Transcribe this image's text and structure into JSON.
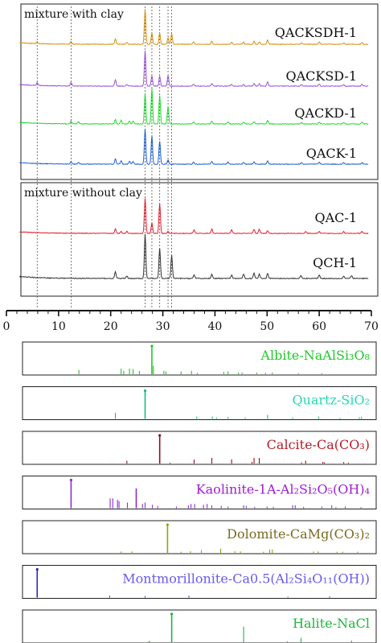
{
  "chart_data": [
    {
      "type": "line",
      "panel": "mixture-with-clay",
      "title": "mixture with clay",
      "xlim": [
        0,
        70
      ],
      "x_ticks": [
        0,
        10,
        20,
        30,
        40,
        50,
        60,
        70
      ],
      "series": [
        {
          "name": "QACKSDH-1",
          "color": "#d4900e",
          "baseline": 0.02,
          "peaks": [
            [
              5.9,
              0.05
            ],
            [
              12.4,
              0.08
            ],
            [
              20.9,
              0.15
            ],
            [
              23.1,
              0.05
            ],
            [
              26.6,
              1.0
            ],
            [
              27.9,
              0.32
            ],
            [
              29.4,
              0.32
            ],
            [
              31.0,
              0.18
            ],
            [
              31.7,
              0.3
            ],
            [
              35.9,
              0.06
            ],
            [
              39.4,
              0.08
            ],
            [
              43.2,
              0.06
            ],
            [
              45.5,
              0.06
            ],
            [
              47.5,
              0.08
            ],
            [
              48.5,
              0.07
            ],
            [
              50.1,
              0.12
            ],
            [
              56.6,
              0.04
            ],
            [
              60.0,
              0.06
            ],
            [
              64.7,
              0.04
            ],
            [
              68.2,
              0.05
            ]
          ]
        },
        {
          "name": "QACKSD-1",
          "color": "#9a52d8",
          "baseline": 0.02,
          "peaks": [
            [
              5.9,
              0.08
            ],
            [
              12.4,
              0.1
            ],
            [
              20.9,
              0.18
            ],
            [
              23.1,
              0.05
            ],
            [
              26.6,
              1.0
            ],
            [
              27.9,
              0.3
            ],
            [
              29.4,
              0.28
            ],
            [
              31.0,
              0.3
            ],
            [
              35.9,
              0.05
            ],
            [
              39.4,
              0.07
            ],
            [
              43.2,
              0.05
            ],
            [
              45.5,
              0.05
            ],
            [
              47.5,
              0.07
            ],
            [
              48.5,
              0.06
            ],
            [
              50.1,
              0.12
            ],
            [
              56.6,
              0.04
            ],
            [
              60.0,
              0.06
            ],
            [
              64.7,
              0.04
            ],
            [
              68.2,
              0.05
            ]
          ]
        },
        {
          "name": "QACKD-1",
          "color": "#1fd82c",
          "baseline": 0.02,
          "peaks": [
            [
              12.4,
              0.08
            ],
            [
              13.8,
              0.06
            ],
            [
              20.9,
              0.12
            ],
            [
              22.0,
              0.1
            ],
            [
              23.6,
              0.08
            ],
            [
              24.3,
              0.08
            ],
            [
              26.6,
              0.85
            ],
            [
              27.9,
              1.0
            ],
            [
              29.4,
              0.8
            ],
            [
              31.0,
              0.5
            ],
            [
              35.9,
              0.06
            ],
            [
              39.4,
              0.07
            ],
            [
              42.5,
              0.06
            ],
            [
              45.5,
              0.05
            ],
            [
              47.5,
              0.06
            ],
            [
              50.1,
              0.1
            ],
            [
              56.6,
              0.04
            ],
            [
              60.0,
              0.05
            ],
            [
              64.7,
              0.04
            ],
            [
              68.2,
              0.05
            ]
          ]
        },
        {
          "name": "QACK-1",
          "color": "#1e5fd0",
          "baseline": 0.02,
          "peaks": [
            [
              12.4,
              0.07
            ],
            [
              13.8,
              0.05
            ],
            [
              20.9,
              0.15
            ],
            [
              22.0,
              0.1
            ],
            [
              23.6,
              0.08
            ],
            [
              24.3,
              0.08
            ],
            [
              26.6,
              1.0
            ],
            [
              27.9,
              0.8
            ],
            [
              29.4,
              0.65
            ],
            [
              31.0,
              0.12
            ],
            [
              35.9,
              0.06
            ],
            [
              39.4,
              0.08
            ],
            [
              42.5,
              0.06
            ],
            [
              45.5,
              0.05
            ],
            [
              47.5,
              0.07
            ],
            [
              50.1,
              0.1
            ],
            [
              56.6,
              0.04
            ],
            [
              60.0,
              0.05
            ],
            [
              64.7,
              0.04
            ],
            [
              68.2,
              0.05
            ]
          ]
        }
      ]
    },
    {
      "type": "line",
      "panel": "mixture-without-clay",
      "title": "mixture without clay",
      "xlim": [
        0,
        70
      ],
      "series": [
        {
          "name": "QAC-1",
          "color": "#e0202e",
          "baseline": 0.02,
          "peaks": [
            [
              20.9,
              0.12
            ],
            [
              22.0,
              0.06
            ],
            [
              23.1,
              0.06
            ],
            [
              26.6,
              1.0
            ],
            [
              27.9,
              0.3
            ],
            [
              29.4,
              0.85
            ],
            [
              31.0,
              0.05
            ],
            [
              36.0,
              0.1
            ],
            [
              39.4,
              0.12
            ],
            [
              43.2,
              0.1
            ],
            [
              47.5,
              0.12
            ],
            [
              48.5,
              0.12
            ],
            [
              50.1,
              0.08
            ],
            [
              57.4,
              0.05
            ],
            [
              60.0,
              0.05
            ],
            [
              64.7,
              0.05
            ],
            [
              68.2,
              0.05
            ]
          ]
        },
        {
          "name": "QCH-1",
          "color": "#333333",
          "baseline": 0.02,
          "peaks": [
            [
              20.9,
              0.15
            ],
            [
              23.1,
              0.05
            ],
            [
              26.6,
              1.0
            ],
            [
              29.4,
              0.68
            ],
            [
              31.7,
              0.52
            ],
            [
              36.0,
              0.08
            ],
            [
              39.4,
              0.1
            ],
            [
              43.2,
              0.07
            ],
            [
              45.5,
              0.1
            ],
            [
              47.5,
              0.12
            ],
            [
              48.5,
              0.1
            ],
            [
              50.1,
              0.12
            ],
            [
              56.5,
              0.06
            ],
            [
              60.0,
              0.08
            ],
            [
              64.7,
              0.05
            ],
            [
              66.2,
              0.06
            ]
          ]
        }
      ]
    },
    {
      "type": "bar",
      "panel": "reference-patterns",
      "xlim": [
        0,
        70
      ],
      "references": [
        {
          "name": "Albite",
          "formula": "NaAlSi₃O₈",
          "color": "#22c82a",
          "label_color": "#22c82a",
          "peaks": [
            [
              13.9,
              0.15
            ],
            [
              22.0,
              0.2
            ],
            [
              22.5,
              0.12
            ],
            [
              23.6,
              0.2
            ],
            [
              24.3,
              0.18
            ],
            [
              25.5,
              0.12
            ],
            [
              27.9,
              1.0
            ],
            [
              28.2,
              0.3
            ],
            [
              30.2,
              0.12
            ],
            [
              30.6,
              0.1
            ],
            [
              33.5,
              0.1
            ],
            [
              35.5,
              0.12
            ],
            [
              36.6,
              0.05
            ],
            [
              41.7,
              0.08
            ],
            [
              42.5,
              0.1
            ],
            [
              44.5,
              0.06
            ],
            [
              45.2,
              0.06
            ],
            [
              48.0,
              0.06
            ],
            [
              49.7,
              0.05
            ],
            [
              51.0,
              0.06
            ],
            [
              56.0,
              0.04
            ],
            [
              60.5,
              0.04
            ]
          ]
        },
        {
          "name": "Quartz",
          "formula": "SiO₂",
          "color": "#19b98c",
          "label_color": "#27d7b4",
          "peaks": [
            [
              20.9,
              0.22
            ],
            [
              26.6,
              1.0
            ],
            [
              36.5,
              0.08
            ],
            [
              39.5,
              0.08
            ],
            [
              40.3,
              0.05
            ],
            [
              42.5,
              0.07
            ],
            [
              45.8,
              0.05
            ],
            [
              50.1,
              0.14
            ],
            [
              54.9,
              0.05
            ],
            [
              59.9,
              0.08
            ],
            [
              64.0,
              0.04
            ],
            [
              67.7,
              0.06
            ],
            [
              68.1,
              0.07
            ]
          ]
        },
        {
          "name": "Calcite",
          "formula": "Ca(CO₃)",
          "color": "#8c1020",
          "label_color": "#b41e2a",
          "peaks": [
            [
              23.1,
              0.1
            ],
            [
              29.4,
              1.0
            ],
            [
              31.4,
              0.03
            ],
            [
              36.0,
              0.14
            ],
            [
              39.4,
              0.2
            ],
            [
              43.2,
              0.15
            ],
            [
              47.1,
              0.06
            ],
            [
              47.5,
              0.2
            ],
            [
              48.5,
              0.2
            ],
            [
              56.6,
              0.04
            ],
            [
              57.4,
              0.1
            ],
            [
              60.7,
              0.06
            ],
            [
              61.0,
              0.04
            ],
            [
              64.7,
              0.05
            ],
            [
              65.6,
              0.03
            ]
          ]
        },
        {
          "name": "Kaolinite-1A",
          "formula": "Al₂Si₂O₅(OH)₄",
          "color": "#8a2bd4",
          "label_color": "#9b1fd0",
          "peaks": [
            [
              12.4,
              1.0
            ],
            [
              19.9,
              0.35
            ],
            [
              20.4,
              0.35
            ],
            [
              21.3,
              0.3
            ],
            [
              21.6,
              0.25
            ],
            [
              23.2,
              0.2
            ],
            [
              24.9,
              0.7
            ],
            [
              26.1,
              0.15
            ],
            [
              26.6,
              0.2
            ],
            [
              28.0,
              0.12
            ],
            [
              29.0,
              0.08
            ],
            [
              32.6,
              0.06
            ],
            [
              34.9,
              0.1
            ],
            [
              35.4,
              0.15
            ],
            [
              36.1,
              0.15
            ],
            [
              37.8,
              0.12
            ],
            [
              38.5,
              0.15
            ],
            [
              39.4,
              0.1
            ],
            [
              41.2,
              0.08
            ],
            [
              42.5,
              0.06
            ],
            [
              45.5,
              0.1
            ],
            [
              46.0,
              0.08
            ],
            [
              47.6,
              0.05
            ],
            [
              50.0,
              0.06
            ],
            [
              51.2,
              0.05
            ],
            [
              54.9,
              0.1
            ],
            [
              55.4,
              0.1
            ],
            [
              57.0,
              0.05
            ],
            [
              60.5,
              0.06
            ],
            [
              62.4,
              0.1
            ],
            [
              63.2,
              0.04
            ],
            [
              65.0,
              0.06
            ],
            [
              68.0,
              0.04
            ]
          ]
        },
        {
          "name": "Dolomite",
          "formula": "CaMg(CO₃)₂",
          "color": "#8aa814",
          "label_color": "#7a6a20",
          "peaks": [
            [
              22.0,
              0.05
            ],
            [
              24.1,
              0.05
            ],
            [
              30.9,
              1.0
            ],
            [
              33.5,
              0.04
            ],
            [
              35.3,
              0.06
            ],
            [
              37.4,
              0.1
            ],
            [
              41.1,
              0.15
            ],
            [
              43.8,
              0.06
            ],
            [
              44.9,
              0.05
            ],
            [
              49.3,
              0.04
            ],
            [
              50.5,
              0.12
            ],
            [
              51.0,
              0.12
            ],
            [
              58.9,
              0.05
            ],
            [
              59.8,
              0.05
            ],
            [
              63.4,
              0.04
            ],
            [
              64.5,
              0.04
            ],
            [
              67.4,
              0.04
            ]
          ]
        },
        {
          "name": "Montmorillonite",
          "formula": "Ca0.5(Al₂Si₄O₁₁(OH))",
          "color": "#2a2ab8",
          "label_color": "#6a5ae8",
          "peaks": [
            [
              5.9,
              1.0
            ],
            [
              19.8,
              0.06
            ],
            [
              26.6,
              0.05
            ],
            [
              35.0,
              0.06
            ],
            [
              54.0,
              0.03
            ],
            [
              62.0,
              0.04
            ]
          ]
        },
        {
          "name": "Halite",
          "formula": "NaCl",
          "color": "#22b43c",
          "label_color": "#22b43c",
          "peaks": [
            [
              27.4,
              0.05
            ],
            [
              31.7,
              1.0
            ],
            [
              45.5,
              0.55
            ],
            [
              53.9,
              0.03
            ],
            [
              56.5,
              0.15
            ],
            [
              66.2,
              0.06
            ]
          ]
        }
      ]
    }
  ],
  "dashed_positions": [
    5.9,
    12.4,
    26.6,
    27.9,
    29.4,
    31.0,
    31.7
  ]
}
